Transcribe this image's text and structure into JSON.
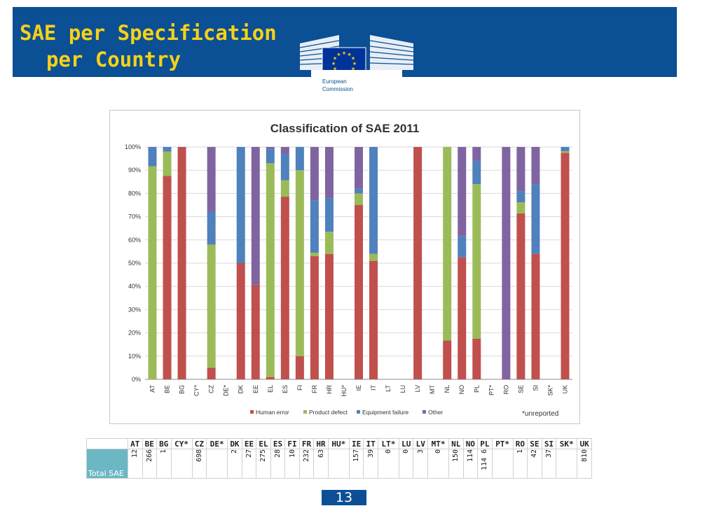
{
  "slide": {
    "title_line1": "SAE per Specification",
    "title_line2": "per Country",
    "logo_text_line1": "European",
    "logo_text_line2": "Commission",
    "page_number": "13",
    "footnote": "*unreported",
    "colors": {
      "banner": "#0b4f94",
      "title": "#f7d117",
      "row_label_bg": "#6bb8c4"
    }
  },
  "chart_data": {
    "type": "bar",
    "stacked": true,
    "title": "Classification of SAE 2011",
    "categories": [
      "AT",
      "BE",
      "BG",
      "CY*",
      "CZ",
      "DE*",
      "DK",
      "EE",
      "EL",
      "ES",
      "FI",
      "FR",
      "HR",
      "HU*",
      "IE",
      "IT",
      "LT",
      "LU",
      "LV",
      "MT",
      "NL",
      "NO",
      "PL",
      "PT*",
      "RO",
      "SE",
      "SI",
      "SK*",
      "UK"
    ],
    "ylim": [
      0,
      100
    ],
    "yticks": [
      "0%",
      "10%",
      "20%",
      "30%",
      "40%",
      "50%",
      "60%",
      "70%",
      "80%",
      "90%",
      "100%"
    ],
    "legend_position": "bottom",
    "series": [
      {
        "name": "Human error",
        "color": "#c0504d",
        "values": [
          0,
          87.5,
          100,
          0,
          5,
          0,
          50,
          40.7,
          1,
          78.6,
          10,
          53,
          54,
          0,
          75,
          51,
          0,
          0,
          100,
          0,
          16.7,
          52.5,
          17.5,
          0,
          0,
          71.4,
          54,
          0,
          97.5
        ]
      },
      {
        "name": "Product defect",
        "color": "#9bbb59",
        "values": [
          91.7,
          10.5,
          0,
          0,
          53,
          0,
          0,
          0,
          92,
          7.1,
          80,
          1.5,
          9.5,
          0,
          5,
          3,
          0,
          0,
          0,
          0,
          83.3,
          0,
          66.5,
          0,
          0,
          4.8,
          0,
          0,
          0.7
        ]
      },
      {
        "name": "Equipment failure",
        "color": "#4f81bd",
        "values": [
          8.3,
          2,
          0,
          0,
          14,
          0,
          50,
          0,
          6,
          11.3,
          10,
          22.5,
          14.5,
          0,
          2,
          46,
          0,
          0,
          0,
          0,
          0,
          9,
          10,
          0,
          0,
          4.8,
          30,
          0,
          1.8
        ]
      },
      {
        "name": "Other",
        "color": "#8064a2",
        "values": [
          0,
          0,
          0,
          0,
          28,
          0,
          0,
          59.3,
          1,
          3,
          0,
          23,
          22,
          0,
          18,
          0,
          0,
          0,
          0,
          0,
          0,
          38.5,
          6,
          0,
          100,
          19,
          16,
          0,
          0
        ]
      }
    ]
  },
  "table": {
    "row_label": "Total SAE",
    "columns": [
      "AT",
      "BE",
      "BG",
      "CY*",
      "CZ",
      "DE*",
      "DK",
      "EE",
      "EL",
      "ES",
      "FI",
      "FR",
      "HR",
      "HU*",
      "IE",
      "IT",
      "LT*",
      "LU",
      "LV",
      "MT*",
      "NL",
      "NO",
      "PL",
      "PT*",
      "RO",
      "SE",
      "SI",
      "SK*",
      "UK"
    ],
    "values": [
      "12",
      "266",
      "1",
      "",
      "698",
      "",
      "2",
      "27",
      "275",
      "28",
      "10",
      "232",
      "63",
      "",
      "157",
      "39",
      "0",
      "0",
      "3",
      "0",
      "150",
      "114",
      "114\n6",
      "",
      "1",
      "42",
      "37",
      "",
      "810"
    ]
  }
}
